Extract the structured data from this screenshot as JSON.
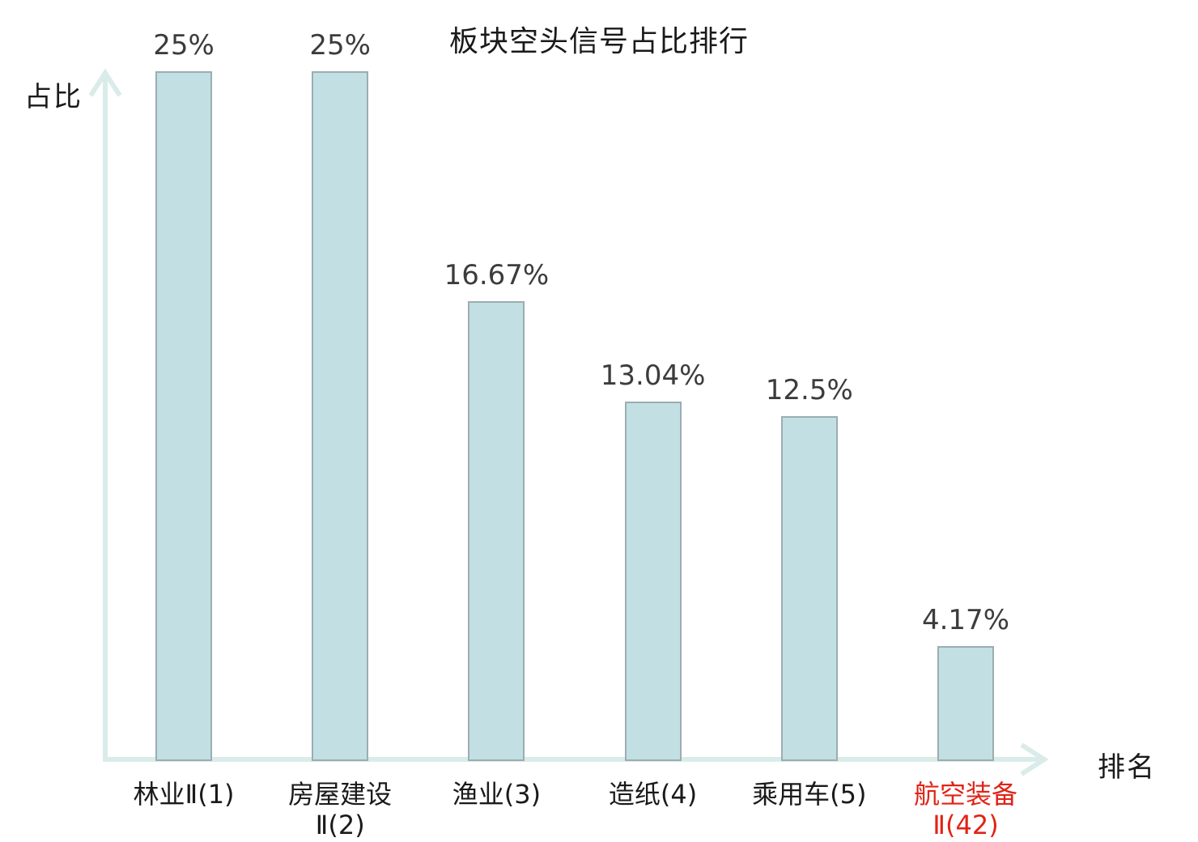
{
  "title": "板块空头信号占比排行",
  "axes": {
    "y_label": "占比",
    "x_label": "排名"
  },
  "colors": {
    "bar_fill": "#c2e0e3",
    "bar_border": "#9cadb1",
    "axis": "#d9ece9",
    "value_text": "#3c3c3c",
    "category_text": "#1a1a1a",
    "highlight_text": "#e02417"
  },
  "chart_data": {
    "type": "bar",
    "title": "板块空头信号占比排行",
    "xlabel": "排名",
    "ylabel": "占比",
    "categories": [
      "林业Ⅱ(1)",
      "房屋建设Ⅱ(2)",
      "渔业(3)",
      "造纸(4)",
      "乘用车(5)",
      "航空装备Ⅱ(42)"
    ],
    "category_lines": [
      [
        "林业Ⅱ(1)"
      ],
      [
        "房屋建设",
        "Ⅱ(2)"
      ],
      [
        "渔业(3)"
      ],
      [
        "造纸(4)"
      ],
      [
        "乘用车(5)"
      ],
      [
        "航空装备",
        "Ⅱ(42)"
      ]
    ],
    "values": [
      25,
      25,
      16.67,
      13.04,
      12.5,
      4.17
    ],
    "value_labels": [
      "25%",
      "25%",
      "16.67%",
      "13.04%",
      "12.5%",
      "4.17%"
    ],
    "highlighted_index": 5,
    "ylim": [
      0,
      25
    ],
    "grid": false,
    "legend": null
  }
}
